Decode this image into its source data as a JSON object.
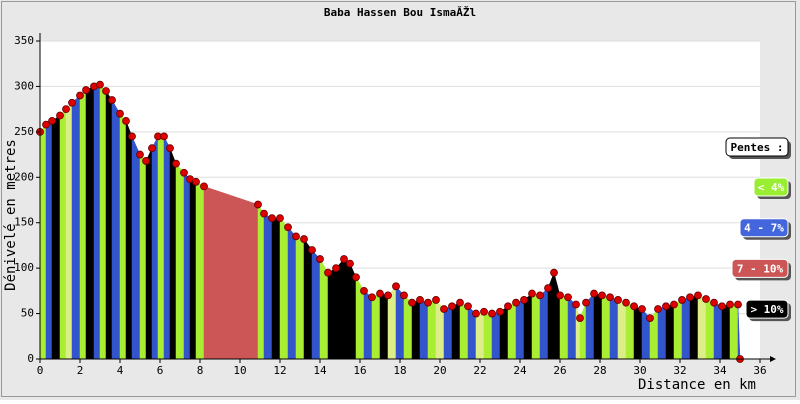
{
  "chart_data": {
    "type": "bar",
    "title": "Baba Hassen Bou IsmaĂŽl",
    "x_label": "Distance en km",
    "y_label": "Dénivelé en metres",
    "xlim": [
      0,
      36
    ],
    "ylim": [
      0,
      350
    ],
    "xticks": [
      0,
      2,
      4,
      6,
      8,
      10,
      12,
      14,
      16,
      18,
      20,
      22,
      24,
      26,
      28,
      30,
      32,
      34,
      36
    ],
    "yticks": [
      0,
      50,
      100,
      150,
      200,
      250,
      300,
      350
    ],
    "grid": true,
    "point_color": "#dd0000",
    "x": [
      0,
      0.3,
      0.6,
      1,
      1.3,
      1.6,
      2,
      2.3,
      2.7,
      3,
      3.3,
      3.6,
      4,
      4.3,
      4.6,
      5,
      5.3,
      5.6,
      5.9,
      6.2,
      6.5,
      6.8,
      7.2,
      7.5,
      7.8,
      8.2,
      10.9,
      11.2,
      11.6,
      12,
      12.4,
      12.8,
      13.2,
      13.6,
      14,
      14.4,
      14.8,
      15.2,
      15.5,
      15.8,
      16.2,
      16.6,
      17,
      17.4,
      17.8,
      18.2,
      18.6,
      19,
      19.4,
      19.8,
      20.2,
      20.6,
      21,
      21.4,
      21.8,
      22.2,
      22.6,
      23,
      23.4,
      23.8,
      24.2,
      24.6,
      25,
      25.4,
      25.7,
      26,
      26.4,
      26.8,
      27,
      27.3,
      27.7,
      28.1,
      28.5,
      28.9,
      29.3,
      29.7,
      30.1,
      30.5,
      30.9,
      31.3,
      31.7,
      32.1,
      32.5,
      32.9,
      33.3,
      33.7,
      34.1,
      34.5,
      34.9,
      35
    ],
    "values": [
      250,
      258,
      262,
      268,
      275,
      282,
      290,
      296,
      300,
      302,
      295,
      285,
      270,
      262,
      245,
      225,
      218,
      232,
      245,
      245,
      232,
      215,
      205,
      198,
      195,
      190,
      170,
      160,
      155,
      155,
      145,
      135,
      132,
      120,
      110,
      95,
      100,
      110,
      105,
      90,
      75,
      68,
      72,
      70,
      80,
      70,
      62,
      65,
      62,
      65,
      55,
      58,
      62,
      58,
      50,
      52,
      50,
      52,
      58,
      62,
      65,
      72,
      70,
      78,
      95,
      70,
      68,
      60,
      45,
      62,
      72,
      70,
      68,
      65,
      62,
      58,
      55,
      45,
      55,
      58,
      60,
      65,
      68,
      70,
      66,
      62,
      58,
      60,
      60,
      0
    ],
    "colors": [
      "#aaee33",
      "#3355cc",
      "#000000",
      "#aaee33",
      "#ddee88",
      "#3355cc",
      "#aaee33",
      "#000000",
      "#3355cc",
      "#aaee33",
      "#000000",
      "#3355cc",
      "#aaee33",
      "#000000",
      "#3355cc",
      "#aaee33",
      "#000000",
      "#3355cc",
      "#aaee33",
      "#3355cc",
      "#000000",
      "#aaee33",
      "#3355cc",
      "#000000",
      "#aaee33",
      "#cc5555",
      "#aaee33",
      "#3355cc",
      "#000000",
      "#aaee33",
      "#3355cc",
      "#aaee33",
      "#000000",
      "#3355cc",
      "#aaee33",
      "#000000",
      "#000000",
      "#000000",
      "#000000",
      "#aaee33",
      "#3355cc",
      "#aaee33",
      "#000000",
      "#ddee88",
      "#3355cc",
      "#aaee33",
      "#000000",
      "#3355cc",
      "#aaee33",
      "#ddee88",
      "#3355cc",
      "#000000",
      "#aaee33",
      "#3355cc",
      "#ddee88",
      "#aaee33",
      "#3355cc",
      "#000000",
      "#aaee33",
      "#3355cc",
      "#000000",
      "#aaee33",
      "#3355cc",
      "#000000",
      "#000000",
      "#aaee33",
      "#3355cc",
      "#ddee88",
      "#aaee33",
      "#3355cc",
      "#000000",
      "#aaee33",
      "#3355cc",
      "#ddee88",
      "#aaee33",
      "#000000",
      "#3355cc",
      "#aaee33",
      "#3355cc",
      "#000000",
      "#aaee33",
      "#3355cc",
      "#000000",
      "#ddee88",
      "#aaee33",
      "#3355cc",
      "#000000",
      "#aaee33",
      "#3355cc",
      "#000000"
    ],
    "legend": {
      "title": "Pentes :",
      "items": [
        {
          "label": "< 4%",
          "color": "#99ee33"
        },
        {
          "label": "4 - 7%",
          "color": "#4466dd"
        },
        {
          "label": "7 - 10%",
          "color": "#cc5555"
        },
        {
          "label": "> 10%",
          "color": "#000000"
        }
      ]
    }
  }
}
